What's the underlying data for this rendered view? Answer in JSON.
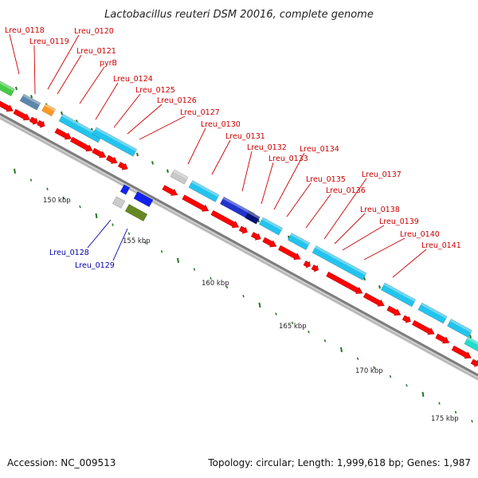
{
  "title": "Lactobacillus reuteri DSM 20016, complete genome",
  "footer": {
    "accession": "Accession: NC_009513",
    "summary": "Topology: circular; Length: 1,999,618 bp; Genes: 1,987"
  },
  "colors": {
    "forward_label": "#cc0000",
    "reverse_label": "#0000aa",
    "cds": "#ff0000",
    "tick": "#227722",
    "backbone": "#888888"
  },
  "scale_labels": [
    "150 kbp",
    "155 kbp",
    "160 kbp",
    "165 kbp",
    "170 kbp",
    "175 kbp"
  ],
  "gene_labels_forward": [
    "Lreu_0118",
    "Lreu_0119",
    "Lreu_0120",
    "Lreu_0121",
    "pyrB",
    "Lreu_0124",
    "Lreu_0125",
    "Lreu_0126",
    "Lreu_0127",
    "Lreu_0130",
    "Lreu_0131",
    "Lreu_0132",
    "Lreu_0133",
    "Lreu_0134",
    "Lreu_0135",
    "Lreu_0136",
    "Lreu_0137",
    "Lreu_0138",
    "Lreu_0139",
    "Lreu_0140",
    "Lreu_0141"
  ],
  "gene_labels_reverse": [
    "Lreu_0128",
    "Lreu_0129"
  ]
}
